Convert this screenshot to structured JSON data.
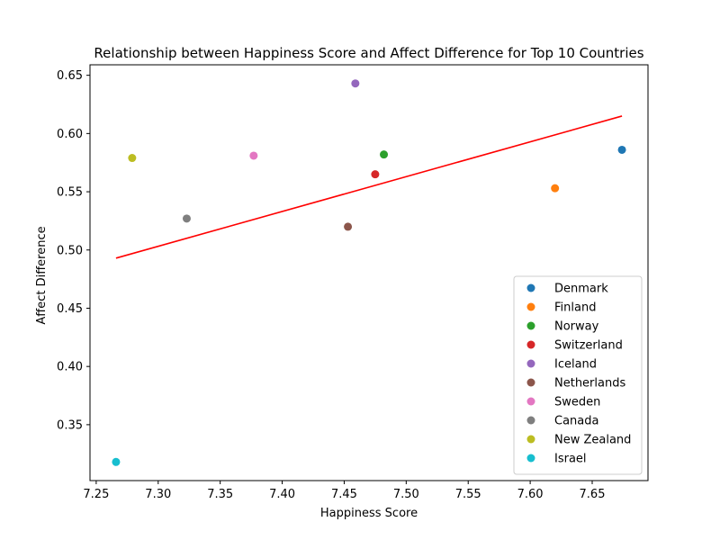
{
  "chart_data": {
    "type": "scatter",
    "title": "Relationship between Happiness Score and Affect Difference for Top 10 Countries",
    "xlabel": "Happiness Score",
    "ylabel": "Affect Difference",
    "xlim": [
      7.245,
      7.695
    ],
    "ylim": [
      0.302,
      0.659
    ],
    "xticks": [
      7.25,
      7.3,
      7.35,
      7.4,
      7.45,
      7.5,
      7.55,
      7.6,
      7.65
    ],
    "xtick_labels": [
      "7.25",
      "7.30",
      "7.35",
      "7.40",
      "7.45",
      "7.50",
      "7.55",
      "7.60",
      "7.65"
    ],
    "yticks": [
      0.35,
      0.4,
      0.45,
      0.5,
      0.55,
      0.6,
      0.65
    ],
    "ytick_labels": [
      "0.35",
      "0.40",
      "0.45",
      "0.50",
      "0.55",
      "0.60",
      "0.65"
    ],
    "grid": false,
    "legend_position": "lower right",
    "series": [
      {
        "name": "Denmark",
        "color": "#1f77b4",
        "x": 7.674,
        "y": 0.586
      },
      {
        "name": "Finland",
        "color": "#ff7f0e",
        "x": 7.62,
        "y": 0.553
      },
      {
        "name": "Norway",
        "color": "#2ca02c",
        "x": 7.482,
        "y": 0.582
      },
      {
        "name": "Switzerland",
        "color": "#d62728",
        "x": 7.475,
        "y": 0.565
      },
      {
        "name": "Iceland",
        "color": "#9467bd",
        "x": 7.459,
        "y": 0.643
      },
      {
        "name": "Netherlands",
        "color": "#8c564b",
        "x": 7.453,
        "y": 0.52
      },
      {
        "name": "Sweden",
        "color": "#e377c2",
        "x": 7.377,
        "y": 0.581
      },
      {
        "name": "Canada",
        "color": "#7f7f7f",
        "x": 7.323,
        "y": 0.527
      },
      {
        "name": "New Zealand",
        "color": "#bcbd22",
        "x": 7.279,
        "y": 0.579
      },
      {
        "name": "Israel",
        "color": "#17becf",
        "x": 7.266,
        "y": 0.318
      }
    ],
    "trend_line": {
      "color": "#ff0000",
      "x": [
        7.266,
        7.674
      ],
      "y": [
        0.493,
        0.615
      ]
    }
  }
}
